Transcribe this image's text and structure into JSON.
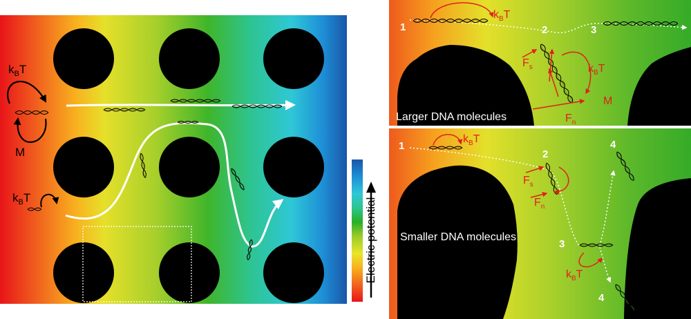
{
  "main_panel": {
    "kbt_top": "k",
    "kbt_top_sub": "B",
    "kbt_top_T": "T",
    "m_label": "M",
    "kbt_bottom": "k",
    "kbt_bottom_sub": "B",
    "kbt_bottom_T": "T"
  },
  "colorbar": {
    "label": "Electric potential",
    "colors": [
      "#e8141a",
      "#f7b21f",
      "#e8e52a",
      "#27b027",
      "#2fc7d6",
      "#1a56a8"
    ]
  },
  "large_panel": {
    "caption": "Larger DNA molecules",
    "step1": "1",
    "step2": "2",
    "step3": "3",
    "kbt_a": "k",
    "kbt_a_sub": "B",
    "kbt_a_T": "T",
    "kbt_b": "k",
    "kbt_b_sub": "B",
    "kbt_b_T": "T",
    "fs": "F",
    "fs_sub": "s",
    "fn": "F",
    "fn_sub": "n",
    "m_label": "M"
  },
  "small_panel": {
    "caption": "Smaller DNA molecules",
    "step1": "1",
    "step2": "2",
    "step3": "3",
    "step4a": "4",
    "step4b": "4",
    "kbt_a": "k",
    "kbt_a_sub": "B",
    "kbt_a_T": "T",
    "kbt_b": "k",
    "kbt_b_sub": "B",
    "kbt_b_T": "T",
    "fs": "F",
    "fs_sub": "s",
    "fn": "F",
    "fn_sub": "n"
  }
}
